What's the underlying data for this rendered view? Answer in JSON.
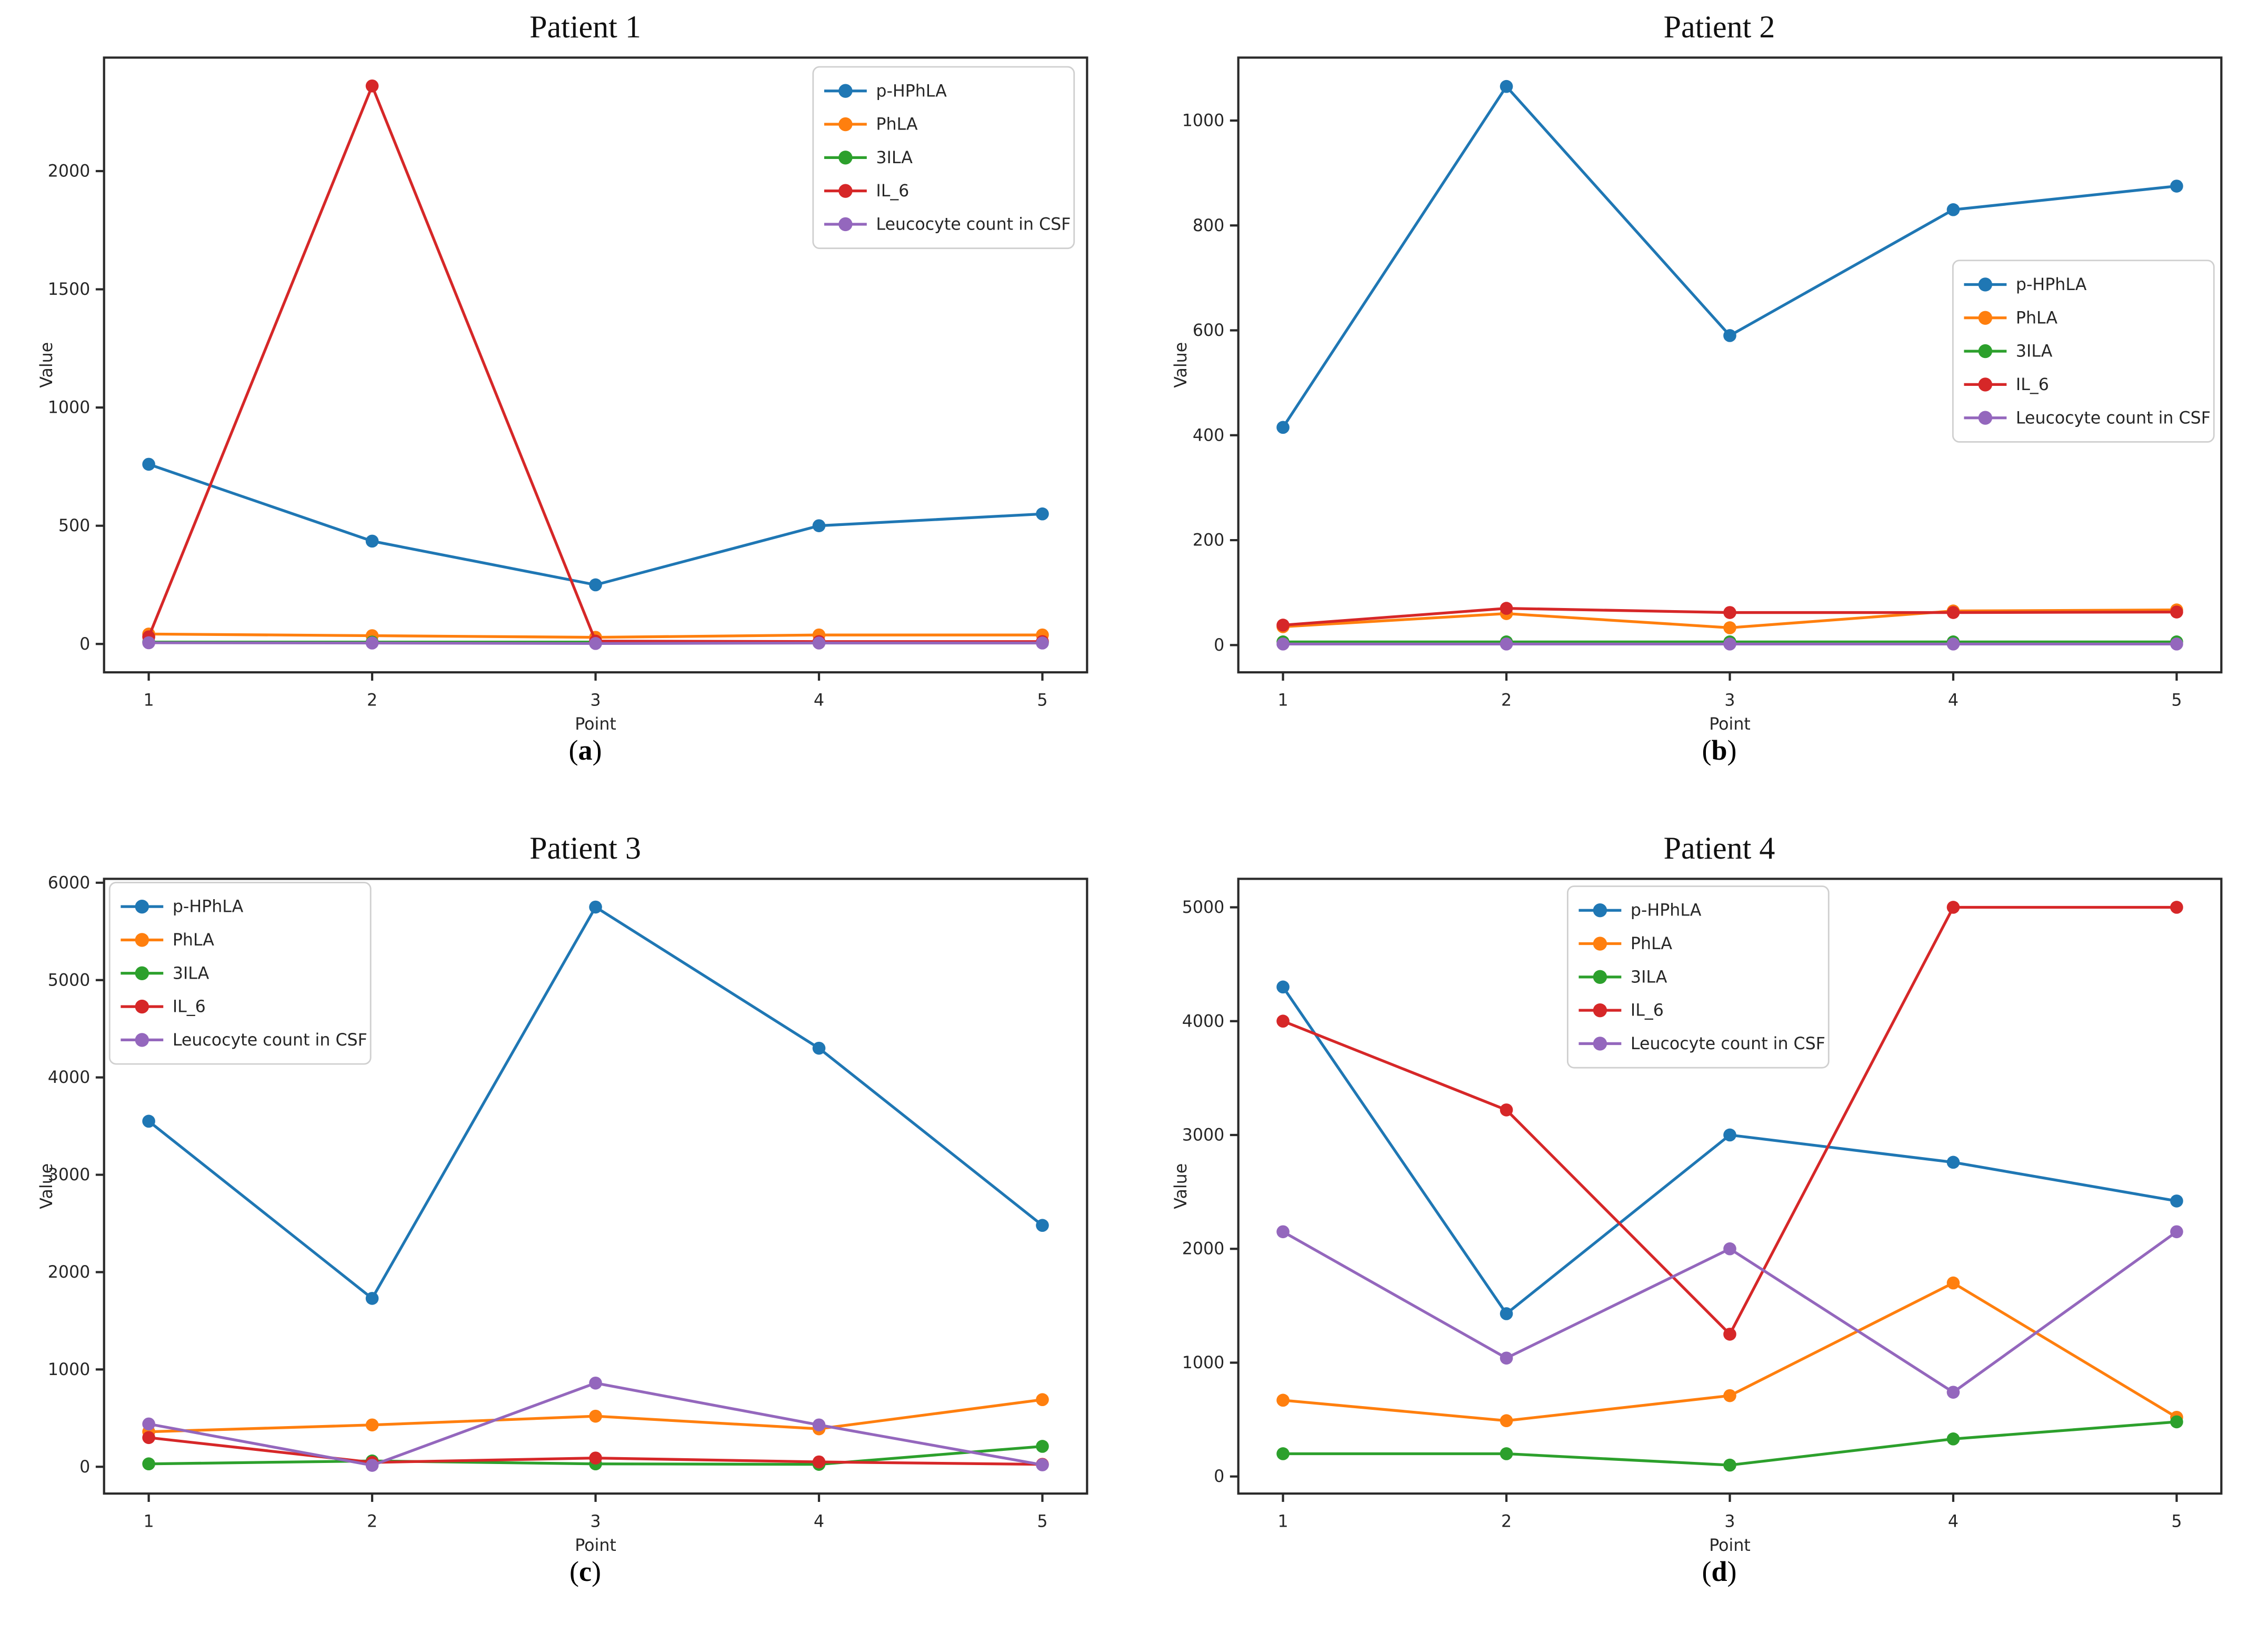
{
  "figure": {
    "background": "#ffffff"
  },
  "chart_data": [
    {
      "type": "line",
      "title": "Patient 1",
      "caption_open": "(",
      "caption_letter": "a",
      "caption_close": ")",
      "xlabel": "Point",
      "ylabel": "Value",
      "x": [
        1,
        2,
        3,
        4,
        5
      ],
      "xlim": [
        0.8,
        5.2
      ],
      "yticks": [
        0,
        500,
        1000,
        1500,
        2000
      ],
      "ylim": [
        -120,
        2480
      ],
      "grid": false,
      "legend_pos": "upper-right",
      "series": [
        {
          "name": "p-HPhLA",
          "color": "#1f77b4",
          "values": [
            760,
            435,
            250,
            500,
            550
          ]
        },
        {
          "name": "PhLA",
          "color": "#ff7f0e",
          "values": [
            42,
            35,
            28,
            38,
            38
          ]
        },
        {
          "name": "3ILA",
          "color": "#2ca02c",
          "values": [
            8,
            8,
            8,
            8,
            8
          ]
        },
        {
          "name": "IL_6",
          "color": "#d62728",
          "values": [
            30,
            2360,
            12,
            10,
            10
          ]
        },
        {
          "name": "Leucocyte count in CSF",
          "color": "#9467bd",
          "values": [
            5,
            4,
            2,
            4,
            4
          ]
        }
      ]
    },
    {
      "type": "line",
      "title": "Patient 2",
      "caption_open": "(",
      "caption_letter": "b",
      "caption_close": ")",
      "xlabel": "Point",
      "ylabel": "Value",
      "x": [
        1,
        2,
        3,
        4,
        5
      ],
      "xlim": [
        0.8,
        5.2
      ],
      "yticks": [
        0,
        200,
        400,
        600,
        800,
        1000
      ],
      "ylim": [
        -52,
        1120
      ],
      "grid": false,
      "legend_pos": "center-right",
      "series": [
        {
          "name": "p-HPhLA",
          "color": "#1f77b4",
          "values": [
            415,
            1065,
            590,
            830,
            875
          ]
        },
        {
          "name": "PhLA",
          "color": "#ff7f0e",
          "values": [
            35,
            60,
            33,
            65,
            67
          ]
        },
        {
          "name": "3ILA",
          "color": "#2ca02c",
          "values": [
            6,
            6,
            6,
            6,
            6
          ]
        },
        {
          "name": "IL_6",
          "color": "#d62728",
          "values": [
            38,
            70,
            62,
            62,
            63
          ]
        },
        {
          "name": "Leucocyte count in CSF",
          "color": "#9467bd",
          "values": [
            2,
            2,
            2,
            2,
            2
          ]
        }
      ]
    },
    {
      "type": "line",
      "title": "Patient 3",
      "caption_open": "(",
      "caption_letter": "c",
      "caption_close": ")",
      "xlabel": "Point",
      "ylabel": "Value",
      "x": [
        1,
        2,
        3,
        4,
        5
      ],
      "xlim": [
        0.8,
        5.2
      ],
      "yticks": [
        0,
        1000,
        2000,
        3000,
        4000,
        5000,
        6000
      ],
      "ylim": [
        -275,
        6040
      ],
      "grid": false,
      "legend_pos": "upper-left",
      "series": [
        {
          "name": "p-HPhLA",
          "color": "#1f77b4",
          "values": [
            3550,
            1730,
            5750,
            4300,
            2480
          ]
        },
        {
          "name": "PhLA",
          "color": "#ff7f0e",
          "values": [
            360,
            430,
            520,
            390,
            690
          ]
        },
        {
          "name": "3ILA",
          "color": "#2ca02c",
          "values": [
            30,
            60,
            30,
            25,
            210
          ]
        },
        {
          "name": "IL_6",
          "color": "#d62728",
          "values": [
            300,
            45,
            90,
            50,
            25
          ]
        },
        {
          "name": "Leucocyte count in CSF",
          "color": "#9467bd",
          "values": [
            440,
            15,
            860,
            430,
            20
          ]
        }
      ]
    },
    {
      "type": "line",
      "title": "Patient 4",
      "caption_open": "(",
      "caption_letter": "d",
      "caption_close": ")",
      "xlabel": "Point",
      "ylabel": "Value",
      "x": [
        1,
        2,
        3,
        4,
        5
      ],
      "xlim": [
        0.8,
        5.2
      ],
      "yticks": [
        0,
        1000,
        2000,
        3000,
        4000,
        5000
      ],
      "ylim": [
        -150,
        5250
      ],
      "grid": false,
      "legend_pos": "upper-center",
      "series": [
        {
          "name": "p-HPhLA",
          "color": "#1f77b4",
          "values": [
            4300,
            1430,
            3000,
            2760,
            2420
          ]
        },
        {
          "name": "PhLA",
          "color": "#ff7f0e",
          "values": [
            670,
            490,
            710,
            1700,
            520
          ]
        },
        {
          "name": "3ILA",
          "color": "#2ca02c",
          "values": [
            200,
            200,
            100,
            330,
            480
          ]
        },
        {
          "name": "IL_6",
          "color": "#d62728",
          "values": [
            4000,
            3220,
            1250,
            5000,
            5000
          ]
        },
        {
          "name": "Leucocyte count in CSF",
          "color": "#9467bd",
          "values": [
            2150,
            1040,
            2000,
            740,
            2150
          ]
        }
      ]
    }
  ]
}
